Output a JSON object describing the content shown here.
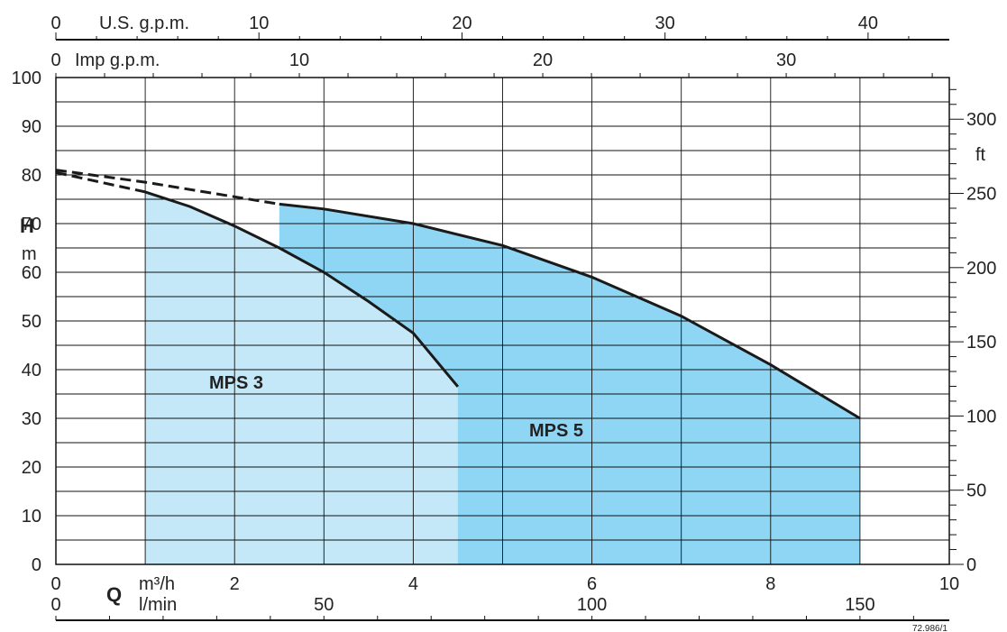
{
  "colors": {
    "mps3_fill": "#c5e8f8",
    "mps5_fill": "#8fd6f5",
    "grid": "#111111",
    "curve": "#1a1a1a"
  },
  "axes": {
    "left": {
      "label_main": "H",
      "label_unit": "m",
      "range": [
        0,
        100
      ],
      "ticks": [
        0,
        10,
        20,
        30,
        40,
        50,
        60,
        70,
        80,
        90,
        100
      ]
    },
    "right": {
      "label": "ft",
      "ticks": [
        0,
        50,
        100,
        150,
        200,
        250,
        300
      ]
    },
    "bottom_main": {
      "symbol": "Q",
      "unit": "m³/h",
      "range": [
        0,
        10
      ],
      "ticks": [
        0,
        2,
        4,
        6,
        8,
        10
      ]
    },
    "bottom_lmin": {
      "unit": "l/min",
      "ticks": [
        0,
        50,
        100,
        150
      ]
    },
    "top_usgpm": {
      "unit": "U.S. g.p.m.",
      "ticks": [
        0,
        10,
        20,
        30,
        40
      ]
    },
    "top_impgpm": {
      "unit": "Imp g.p.m.",
      "ticks": [
        0,
        10,
        20,
        30
      ]
    }
  },
  "code": "72.986/1",
  "chart_data": {
    "type": "line",
    "xlabel": "Q m³/h",
    "ylabel": "H m",
    "xlim": [
      0,
      10
    ],
    "ylim": [
      0,
      100
    ],
    "grid": true,
    "series": [
      {
        "name": "MPS 3",
        "dashed_range": [
          0,
          1
        ],
        "operating_range": [
          1,
          4.5
        ],
        "points": [
          [
            0,
            80.5
          ],
          [
            1,
            76.5
          ],
          [
            1.5,
            73.5
          ],
          [
            2,
            69.5
          ],
          [
            2.5,
            65
          ],
          [
            3,
            60
          ],
          [
            3.5,
            54
          ],
          [
            4,
            47.5
          ],
          [
            4.5,
            36.5
          ]
        ]
      },
      {
        "name": "MPS 5",
        "dashed_range": [
          0,
          2.5
        ],
        "operating_range": [
          2.5,
          9
        ],
        "points": [
          [
            0,
            81
          ],
          [
            1,
            78.5
          ],
          [
            2,
            75.5
          ],
          [
            2.5,
            74
          ],
          [
            3,
            73
          ],
          [
            4,
            70
          ],
          [
            5,
            65.5
          ],
          [
            6,
            59
          ],
          [
            7,
            51
          ],
          [
            8,
            41
          ],
          [
            9,
            30
          ]
        ]
      }
    ]
  }
}
